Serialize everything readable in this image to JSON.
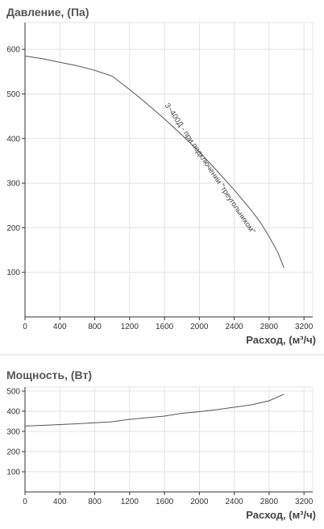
{
  "chart_data": [
    {
      "type": "line",
      "title": "Давление, (Па)",
      "xlabel": "Расход, (м³/ч)",
      "ylabel": "",
      "xlim": [
        0,
        3300
      ],
      "ylim": [
        0,
        660
      ],
      "xticks": [
        0,
        400,
        800,
        1200,
        1600,
        2000,
        2400,
        2800,
        3200
      ],
      "yticks": [
        100,
        200,
        300,
        400,
        500,
        600
      ],
      "grid": true,
      "series": [
        {
          "name": "",
          "x": [
            0,
            200,
            400,
            600,
            800,
            1000,
            1200,
            1400,
            1600,
            1800,
            2000,
            2200,
            2400,
            2600,
            2700,
            2800,
            2900,
            2970
          ],
          "y": [
            585,
            579,
            571,
            563,
            553,
            540,
            510,
            478,
            444,
            408,
            370,
            328,
            285,
            238,
            212,
            180,
            145,
            110
          ]
        }
      ],
      "annotations": [
        {
          "text": "3~400Д - при подключении \"треугольником\"",
          "x": 2100,
          "y": 330
        }
      ]
    },
    {
      "type": "line",
      "title": "Мощность, (Вт)",
      "xlabel": "Расход, (м³/ч)",
      "ylabel": "",
      "xlim": [
        0,
        3300
      ],
      "ylim": [
        0,
        520
      ],
      "xticks": [
        0,
        400,
        800,
        1200,
        1600,
        2000,
        2400,
        2800,
        3200
      ],
      "yticks": [
        100,
        200,
        300,
        400,
        500
      ],
      "grid": true,
      "series": [
        {
          "name": "",
          "x": [
            0,
            200,
            400,
            600,
            800,
            1000,
            1200,
            1400,
            1600,
            1800,
            2000,
            2200,
            2400,
            2600,
            2800,
            2970
          ],
          "y": [
            327,
            330,
            334,
            338,
            343,
            348,
            360,
            368,
            376,
            390,
            398,
            408,
            420,
            432,
            452,
            485
          ]
        }
      ]
    }
  ]
}
